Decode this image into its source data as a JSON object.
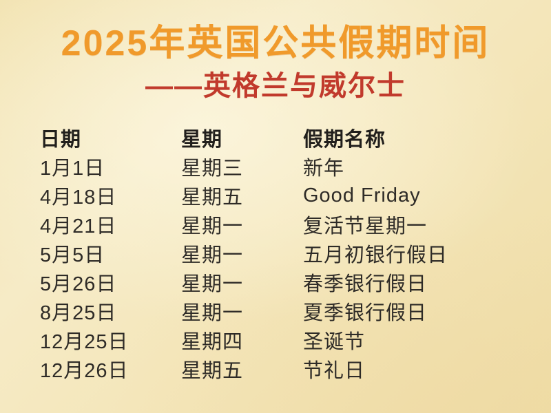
{
  "page": {
    "title": "2025年英国公共假期时间",
    "subtitle": "——英格兰与威尔士"
  },
  "table": {
    "headers": [
      "日期",
      "星期",
      "假期名称"
    ],
    "rows": [
      {
        "date": "1月1日",
        "weekday": "星期三",
        "name": "新年"
      },
      {
        "date": "4月18日",
        "weekday": "星期五",
        "name": "Good Friday"
      },
      {
        "date": "4月21日",
        "weekday": "星期一",
        "name": "复活节星期一"
      },
      {
        "date": "5月5日",
        "weekday": "星期一",
        "name": "五月初银行假日"
      },
      {
        "date": "5月26日",
        "weekday": "星期一",
        "name": "春季银行假日"
      },
      {
        "date": "8月25日",
        "weekday": "星期一",
        "name": "夏季银行假日"
      },
      {
        "date": "12月25日",
        "weekday": "星期四",
        "name": "圣诞节"
      },
      {
        "date": "12月26日",
        "weekday": "星期五",
        "name": "节礼日"
      }
    ]
  },
  "colors": {
    "title": "#F09A2B",
    "subtitle": "#C13A2C",
    "text": "#2E2B27",
    "background": "#F4E6BA"
  }
}
